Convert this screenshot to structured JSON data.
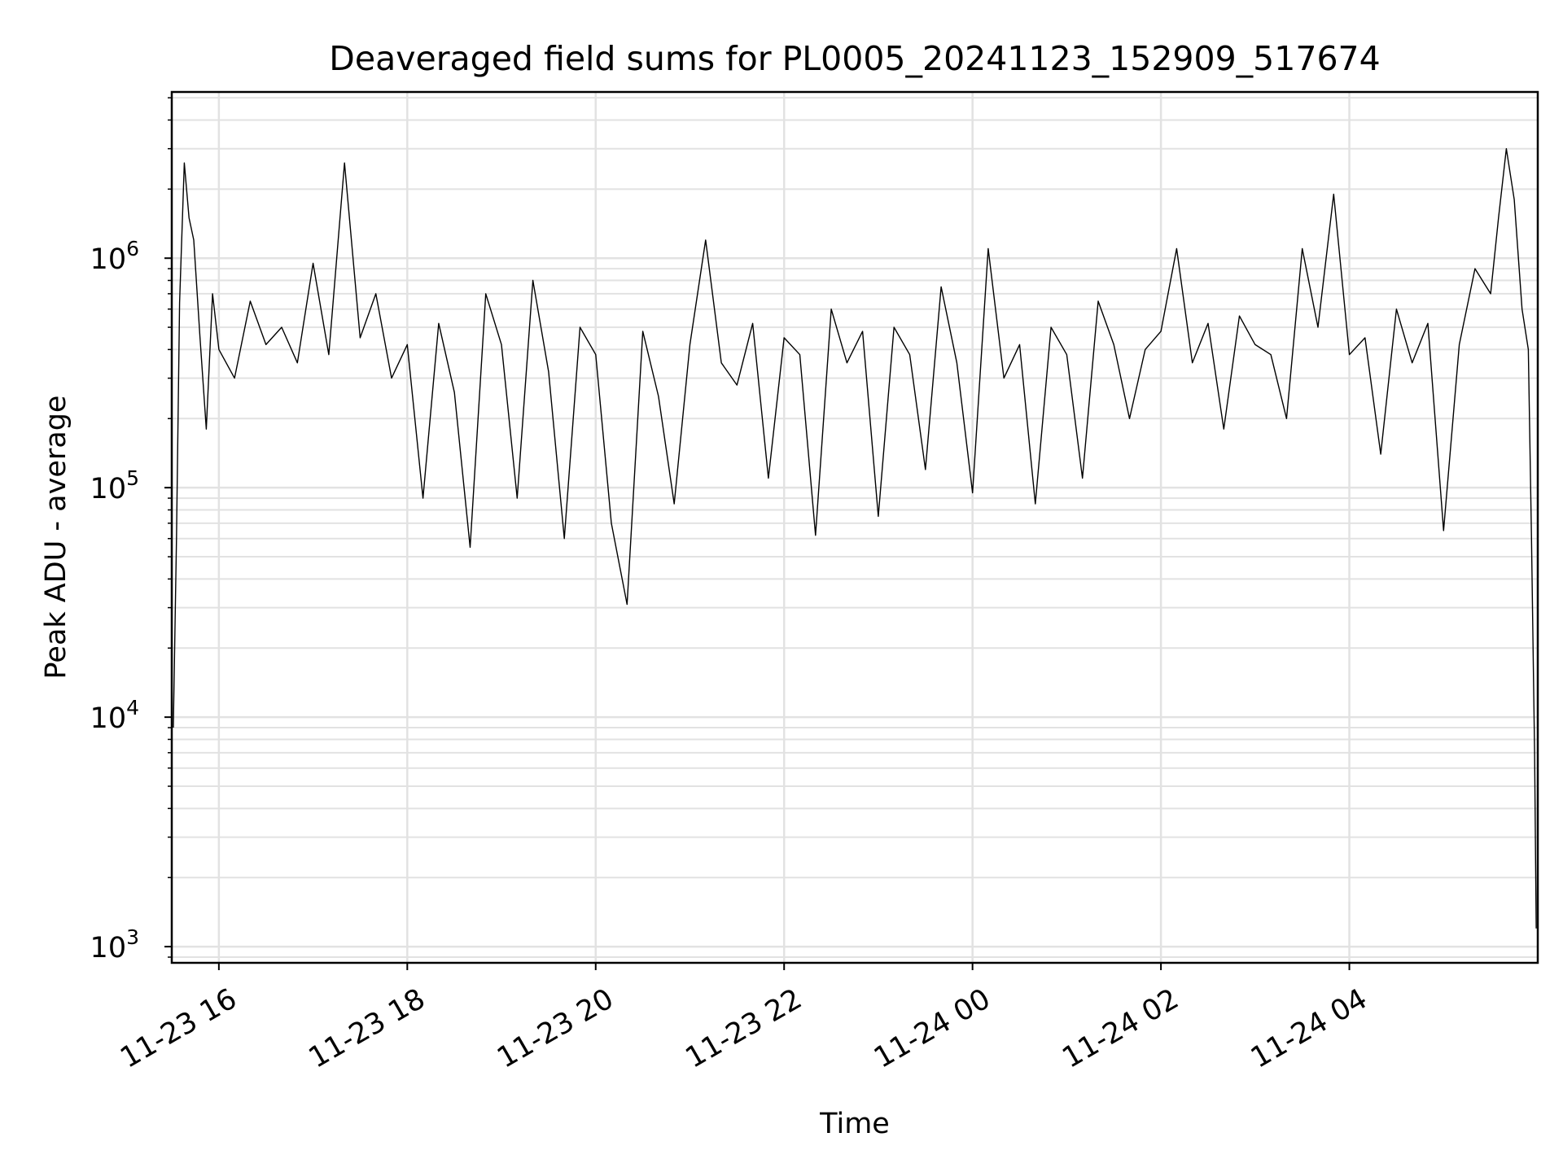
{
  "chart_data": {
    "type": "line",
    "title": "Deaveraged field sums for PL0005_20241123_152909_517674",
    "xlabel": "Time",
    "ylabel": "Peak ADU - average",
    "yscale": "log",
    "ylim": [
      850,
      5300000
    ],
    "xlim": [
      "2024-11-23 15:30",
      "2024-11-24 06:00"
    ],
    "grid": true,
    "x_ticks": [
      {
        "value": "2024-11-23 16:00",
        "label": "11-23 16"
      },
      {
        "value": "2024-11-23 18:00",
        "label": "11-23 18"
      },
      {
        "value": "2024-11-23 20:00",
        "label": "11-23 20"
      },
      {
        "value": "2024-11-23 22:00",
        "label": "11-23 22"
      },
      {
        "value": "2024-11-24 00:00",
        "label": "11-24 00"
      },
      {
        "value": "2024-11-24 02:00",
        "label": "11-24 02"
      },
      {
        "value": "2024-11-24 04:00",
        "label": "11-24 04"
      }
    ],
    "y_ticks": [
      {
        "value": 1000,
        "base": "10",
        "exp": "3"
      },
      {
        "value": 10000,
        "base": "10",
        "exp": "4"
      },
      {
        "value": 100000,
        "base": "10",
        "exp": "5"
      },
      {
        "value": 1000000,
        "base": "10",
        "exp": "6"
      }
    ],
    "series": [
      {
        "color": "#000000",
        "x": [
          "2024-11-23 15:31",
          "2024-11-23 15:33",
          "2024-11-23 15:35",
          "2024-11-23 15:38",
          "2024-11-23 15:41",
          "2024-11-23 15:44",
          "2024-11-23 15:48",
          "2024-11-23 15:52",
          "2024-11-23 15:56",
          "2024-11-23 16:00",
          "2024-11-23 16:10",
          "2024-11-23 16:20",
          "2024-11-23 16:30",
          "2024-11-23 16:40",
          "2024-11-23 16:50",
          "2024-11-23 17:00",
          "2024-11-23 17:10",
          "2024-11-23 17:20",
          "2024-11-23 17:30",
          "2024-11-23 17:40",
          "2024-11-23 17:50",
          "2024-11-23 18:00",
          "2024-11-23 18:10",
          "2024-11-23 18:20",
          "2024-11-23 18:30",
          "2024-11-23 18:40",
          "2024-11-23 18:50",
          "2024-11-23 19:00",
          "2024-11-23 19:10",
          "2024-11-23 19:20",
          "2024-11-23 19:30",
          "2024-11-23 19:40",
          "2024-11-23 19:50",
          "2024-11-23 20:00",
          "2024-11-23 20:10",
          "2024-11-23 20:20",
          "2024-11-23 20:30",
          "2024-11-23 20:40",
          "2024-11-23 20:50",
          "2024-11-23 21:00",
          "2024-11-23 21:10",
          "2024-11-23 21:20",
          "2024-11-23 21:30",
          "2024-11-23 21:40",
          "2024-11-23 21:50",
          "2024-11-23 22:00",
          "2024-11-23 22:10",
          "2024-11-23 22:20",
          "2024-11-23 22:30",
          "2024-11-23 22:40",
          "2024-11-23 22:50",
          "2024-11-23 23:00",
          "2024-11-23 23:10",
          "2024-11-23 23:20",
          "2024-11-23 23:30",
          "2024-11-23 23:40",
          "2024-11-23 23:50",
          "2024-11-24 00:00",
          "2024-11-24 00:10",
          "2024-11-24 00:20",
          "2024-11-24 00:30",
          "2024-11-24 00:40",
          "2024-11-24 00:50",
          "2024-11-24 01:00",
          "2024-11-24 01:10",
          "2024-11-24 01:20",
          "2024-11-24 01:30",
          "2024-11-24 01:40",
          "2024-11-24 01:50",
          "2024-11-24 02:00",
          "2024-11-24 02:10",
          "2024-11-24 02:20",
          "2024-11-24 02:30",
          "2024-11-24 02:40",
          "2024-11-24 02:50",
          "2024-11-24 03:00",
          "2024-11-24 03:10",
          "2024-11-24 03:20",
          "2024-11-24 03:30",
          "2024-11-24 03:40",
          "2024-11-24 03:50",
          "2024-11-24 04:00",
          "2024-11-24 04:10",
          "2024-11-24 04:20",
          "2024-11-24 04:30",
          "2024-11-24 04:40",
          "2024-11-24 04:50",
          "2024-11-24 05:00",
          "2024-11-24 05:10",
          "2024-11-24 05:20",
          "2024-11-24 05:30",
          "2024-11-24 05:35",
          "2024-11-24 05:40",
          "2024-11-24 05:45",
          "2024-11-24 05:50",
          "2024-11-24 05:54",
          "2024-11-24 05:56",
          "2024-11-24 05:58",
          "2024-11-24 05:59"
        ],
        "y": [
          9000,
          60000,
          640000,
          2600000,
          1500000,
          1200000,
          450000,
          180000,
          700000,
          400000,
          300000,
          650000,
          420000,
          500000,
          350000,
          950000,
          380000,
          2600000,
          450000,
          700000,
          300000,
          420000,
          90000,
          520000,
          260000,
          55000,
          700000,
          420000,
          90000,
          800000,
          320000,
          60000,
          500000,
          380000,
          70000,
          31000,
          480000,
          250000,
          85000,
          420000,
          1200000,
          350000,
          280000,
          520000,
          110000,
          450000,
          380000,
          62000,
          600000,
          350000,
          480000,
          75000,
          500000,
          380000,
          120000,
          750000,
          350000,
          95000,
          1100000,
          300000,
          420000,
          85000,
          500000,
          380000,
          110000,
          650000,
          420000,
          200000,
          400000,
          480000,
          1100000,
          350000,
          520000,
          180000,
          560000,
          420000,
          380000,
          200000,
          1100000,
          500000,
          1900000,
          380000,
          450000,
          140000,
          600000,
          350000,
          520000,
          65000,
          420000,
          900000,
          700000,
          1500000,
          3000000,
          1800000,
          600000,
          400000,
          60000,
          7000,
          1200
        ]
      }
    ]
  }
}
